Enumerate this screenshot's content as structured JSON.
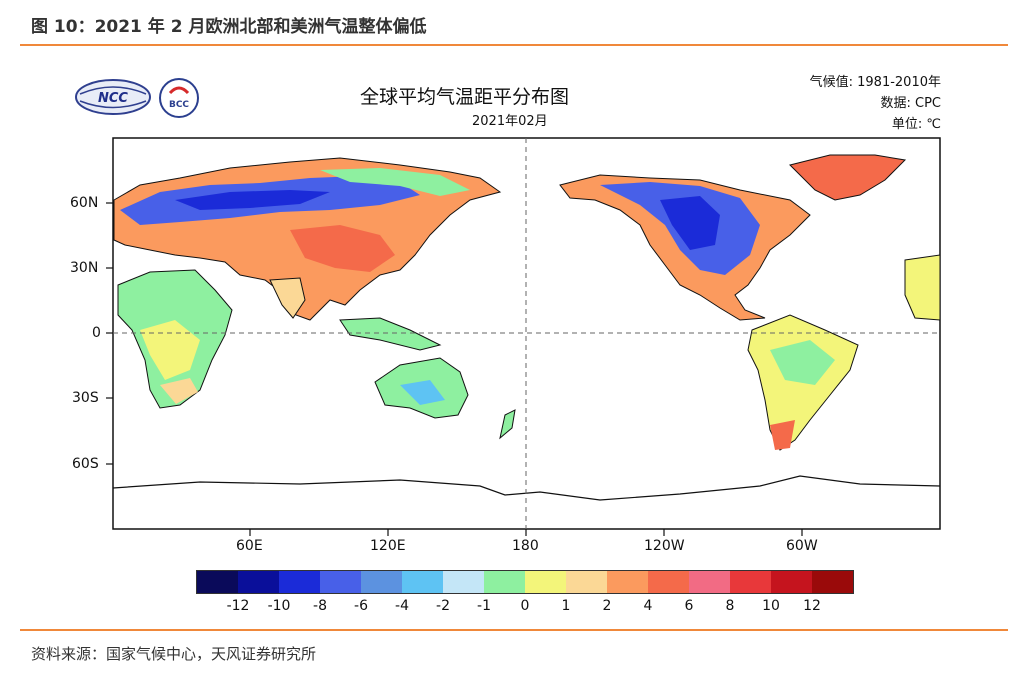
{
  "figure_title": "图 10：2021 年 2 月欧洲北部和美洲气温整体偏低",
  "source": "资料来源：国家气候中心，天风证券研究所",
  "logos": {
    "ncc": "NCC",
    "bcc": "BCC"
  },
  "map": {
    "title": "全球平均气温距平分布图",
    "subtitle": "2021年02月",
    "climatology": "气候值: 1981-2010年",
    "data_source": "数据: CPC",
    "unit": "单位: ℃",
    "lat_labels": [
      "60N",
      "30N",
      "0",
      "30S",
      "60S"
    ],
    "lon_labels": [
      "60E",
      "120E",
      "180",
      "120W",
      "60W"
    ]
  },
  "colorbar": {
    "colors": [
      "#0a0a5a",
      "#0a0f9a",
      "#1b2bd8",
      "#4860e8",
      "#5c92e0",
      "#5ec3f3",
      "#c4e6f7",
      "#8ef0a0",
      "#f3f57a",
      "#fbd896",
      "#fb9a5e",
      "#f46a4a",
      "#f26b84",
      "#e8383a",
      "#c5141e",
      "#9a0a0a"
    ],
    "labels": [
      "-12",
      "-10",
      "-8",
      "-6",
      "-4",
      "-2",
      "-1",
      "0",
      "1",
      "2",
      "4",
      "6",
      "8",
      "10",
      "12"
    ]
  }
}
